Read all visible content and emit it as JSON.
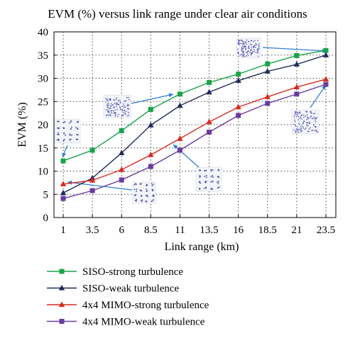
{
  "chart_data": {
    "type": "line",
    "title": "EVM (%) versus link range under clear air conditions",
    "xlabel": "Link range (km)",
    "ylabel": "EVM (%)",
    "x": [
      1,
      3.5,
      6,
      8.5,
      11,
      13.5,
      16,
      18.5,
      21,
      23.5
    ],
    "x_tick_labels": [
      "1",
      "3.5",
      "6",
      "8.5",
      "11",
      "13.5",
      "16",
      "18.5",
      "21",
      "23.5"
    ],
    "ylim": [
      0,
      40
    ],
    "y_ticks": [
      0,
      5,
      10,
      15,
      20,
      25,
      30,
      35,
      40
    ],
    "grid": "dotted",
    "legend_position": "bottom",
    "series": [
      {
        "name": "SISO-strong turbulence",
        "color": "#1aa34a",
        "marker": "square",
        "values": [
          12.2,
          14.5,
          18.7,
          23.3,
          26.6,
          29.1,
          30.9,
          33.1,
          34.9,
          36.0
        ]
      },
      {
        "name": "SISO-weak turbulence",
        "color": "#1f2a5c",
        "marker": "triangle",
        "values": [
          5.3,
          8.5,
          13.9,
          19.9,
          24.1,
          27.0,
          29.5,
          31.5,
          33.0,
          35.0
        ]
      },
      {
        "name": "4x4 MIMO-strong turbulence",
        "color": "#d42b1e",
        "marker": "triangle",
        "values": [
          7.2,
          8.0,
          10.3,
          13.5,
          17.0,
          20.6,
          23.8,
          26.0,
          28.1,
          29.8
        ]
      },
      {
        "name": "4x4 MIMO-weak turbulence",
        "color": "#6a3aa0",
        "marker": "square",
        "values": [
          4.1,
          5.8,
          8.1,
          11.0,
          14.5,
          18.4,
          22.0,
          24.6,
          26.6,
          28.7
        ]
      }
    ],
    "insets": [
      {
        "name": "constellation-inset-low"
      },
      {
        "name": "constellation-inset-lattice"
      },
      {
        "name": "constellation-inset-mid"
      },
      {
        "name": "constellation-inset-scatter-left"
      },
      {
        "name": "constellation-inset-scatter-top"
      },
      {
        "name": "constellation-inset-scatter-right"
      }
    ]
  }
}
